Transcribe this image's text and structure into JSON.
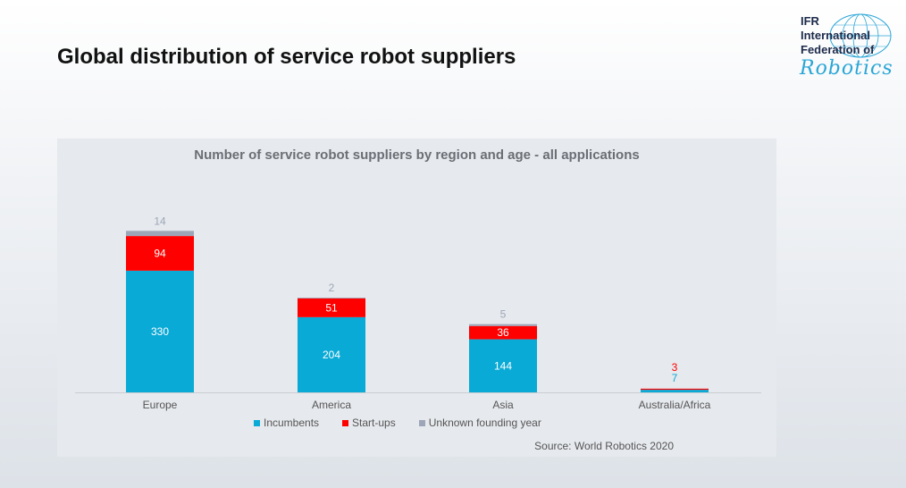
{
  "slide": {
    "title": "Global distribution of service robot suppliers"
  },
  "logo": {
    "line1": "IFR",
    "line2": "International",
    "line3": "Federation of",
    "script": "Robotics",
    "accent_color": "#2aa6d6"
  },
  "chart_data": {
    "type": "bar",
    "stacked": true,
    "title": "Number of service robot suppliers by region and age - all applications",
    "categories": [
      "Europe",
      "America",
      "Asia",
      "Australia/Africa"
    ],
    "series": [
      {
        "name": "Incumbents",
        "color": "#0aaad6",
        "values": [
          330,
          204,
          144,
          7
        ]
      },
      {
        "name": "Start-ups",
        "color": "#ff0000",
        "values": [
          94,
          51,
          36,
          3
        ]
      },
      {
        "name": "Unknown founding year",
        "color": "#9da6b8",
        "values": [
          14,
          2,
          5,
          0
        ]
      }
    ],
    "data_labels": [
      {
        "category": "Europe",
        "values": [
          "330",
          "94",
          "14"
        ]
      },
      {
        "category": "America",
        "values": [
          "204",
          "51",
          "2"
        ]
      },
      {
        "category": "Asia",
        "values": [
          "144",
          "36",
          "5"
        ]
      },
      {
        "category": "Australia/Africa",
        "values": [
          "7",
          "3",
          ""
        ]
      }
    ],
    "ylim": [
      0,
      480
    ],
    "grid": false,
    "legend_position": "bottom",
    "source": "Source: World Robotics 2020"
  }
}
